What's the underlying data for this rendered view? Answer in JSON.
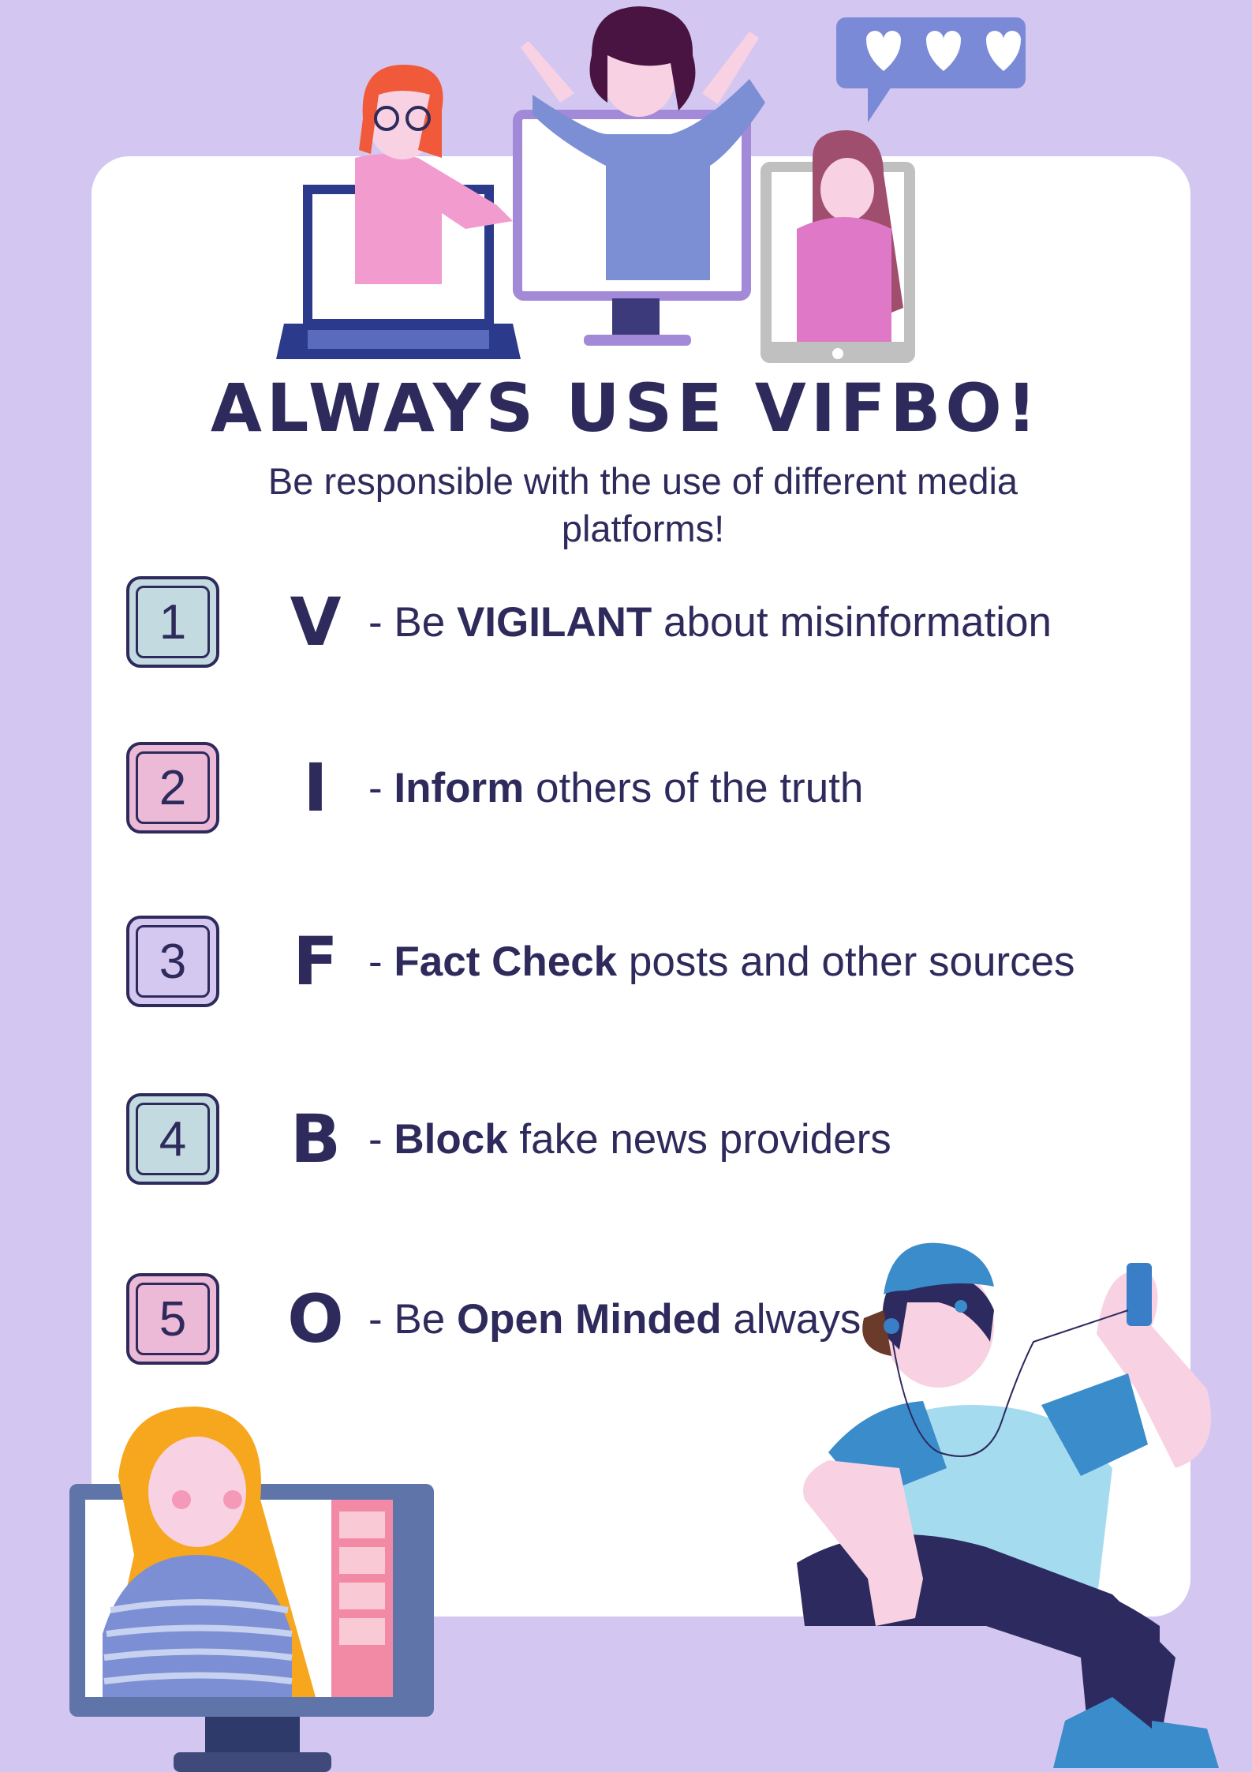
{
  "poster": {
    "title": "ALWAYS USE VIFBO!",
    "subtitle": "Be responsible with the use of different media platforms!"
  },
  "items": [
    {
      "number": "1",
      "letter": "V",
      "prefix": "- Be ",
      "keyword": "VIGILANT",
      "suffix": " about misinformation",
      "color": "#c3dbe0"
    },
    {
      "number": "2",
      "letter": "I",
      "prefix": "- ",
      "keyword": "Inform",
      "suffix": " others of the truth",
      "color": "#ecb9d7"
    },
    {
      "number": "3",
      "letter": "F",
      "prefix": "- ",
      "keyword": "Fact Check",
      "suffix": " posts and other sources",
      "color": "#d4c8f1"
    },
    {
      "number": "4",
      "letter": "B",
      "prefix": "- ",
      "keyword": "Block",
      "suffix": " fake news providers",
      "color": "#c3dbe0"
    },
    {
      "number": "5",
      "letter": "O",
      "prefix": "- Be ",
      "keyword": "Open Minded",
      "suffix": " always",
      "color": "#ecb9d7"
    }
  ],
  "colors": {
    "background": "#d3c7f1",
    "card": "#ffffff",
    "text": "#2e2b5c"
  }
}
